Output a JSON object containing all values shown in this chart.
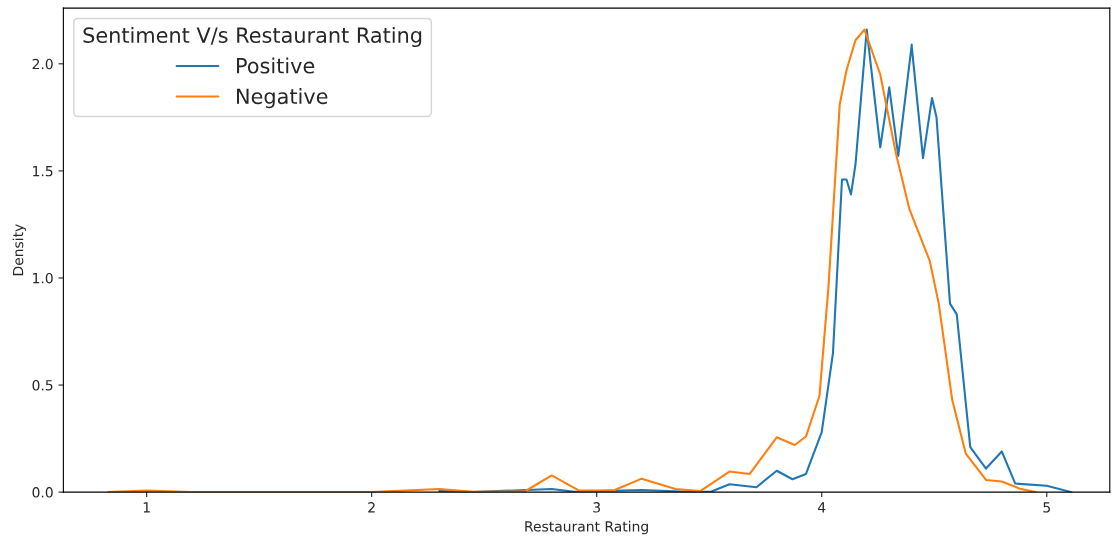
{
  "chart_data": {
    "type": "line",
    "xlabel": "Restaurant Rating",
    "ylabel": "Density",
    "legend_title": "Sentiment V/s Restaurant Rating",
    "xlim": [
      0.63,
      5.28
    ],
    "ylim": [
      0,
      2.26
    ],
    "xticks": [
      1,
      2,
      3,
      4,
      5
    ],
    "yticks": [
      {
        "value": 0,
        "label": "0.0"
      },
      {
        "value": 0.5,
        "label": "0.5"
      },
      {
        "value": 1,
        "label": "1.0"
      },
      {
        "value": 1.5,
        "label": "1.5"
      },
      {
        "value": 2,
        "label": "2.0"
      }
    ],
    "grid": false,
    "legend": "top left",
    "marker": "none",
    "line_style": "solid",
    "series": [
      {
        "name": "Positive",
        "color": "#1f77b4",
        "x": [
          2.3,
          2.45,
          2.8,
          2.9,
          3.2,
          3.4,
          3.51,
          3.59,
          3.71,
          3.8,
          3.87,
          3.93,
          4.0,
          4.05,
          4.09,
          4.11,
          4.13,
          4.15,
          4.2,
          4.26,
          4.3,
          4.34,
          4.4,
          4.4,
          4.45,
          4.49,
          4.51,
          4.57,
          4.6,
          4.66,
          4.73,
          4.8,
          4.86,
          5.0,
          5.11
        ],
        "values": [
          0.005,
          0,
          0.015,
          0.002,
          0.01,
          0.002,
          0.003,
          0.037,
          0.023,
          0.1,
          0.06,
          0.085,
          0.28,
          0.65,
          1.46,
          1.46,
          1.39,
          1.53,
          2.16,
          1.61,
          1.89,
          1.57,
          2.09,
          2.08,
          1.56,
          1.84,
          1.75,
          0.88,
          0.83,
          0.21,
          0.11,
          0.19,
          0.04,
          0.03,
          0
        ]
      },
      {
        "name": "Negative",
        "color": "#ff7f0e",
        "x": [
          0.83,
          1.0,
          1.2,
          2.0,
          2.3,
          2.45,
          2.68,
          2.8,
          2.92,
          3.0,
          3.08,
          3.2,
          3.35,
          3.46,
          3.59,
          3.68,
          3.8,
          3.88,
          3.93,
          3.99,
          4.03,
          4.08,
          4.11,
          4.15,
          4.19,
          4.26,
          4.33,
          4.39,
          4.48,
          4.52,
          4.58,
          4.64,
          4.73,
          4.8,
          4.88,
          4.95
        ],
        "values": [
          0,
          0.007,
          0,
          0,
          0.015,
          0.002,
          0.003,
          0.078,
          0.008,
          0.008,
          0.01,
          0.063,
          0.015,
          0.005,
          0.096,
          0.085,
          0.256,
          0.22,
          0.26,
          0.45,
          0.96,
          1.81,
          1.97,
          2.11,
          2.16,
          1.95,
          1.58,
          1.32,
          1.08,
          0.88,
          0.43,
          0.18,
          0.057,
          0.05,
          0.016,
          0
        ]
      }
    ]
  }
}
